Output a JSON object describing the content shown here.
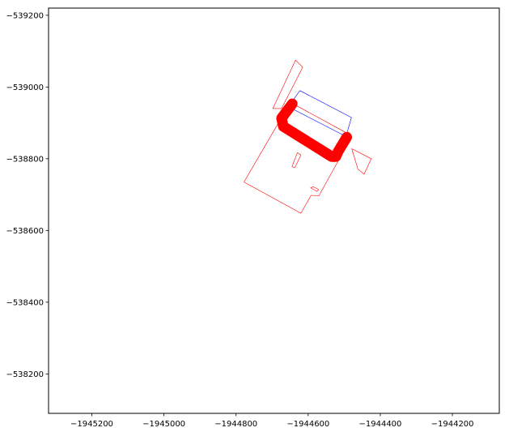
{
  "chart_data": {
    "type": "map-geometry",
    "title": "",
    "xlabel": "",
    "ylabel": "",
    "xlim": [
      -1945320,
      -1944070
    ],
    "ylim": [
      -539220,
      -538090
    ],
    "xticks": [
      -1945200,
      -1945000,
      -1944800,
      -1944600,
      -1944400,
      -1944200
    ],
    "yticks": [
      -538200,
      -538400,
      -538600,
      -538800,
      -539000,
      -539200
    ],
    "xtick_labels": [
      "−1945200",
      "−1945000",
      "−1944800",
      "−1944600",
      "−1944400",
      "−1944200"
    ],
    "ytick_labels": [
      "−538200",
      "−538400",
      "−538600",
      "−538800",
      "−539000",
      "−539200"
    ],
    "grid": false,
    "series": [
      {
        "color": "#ff0000",
        "linewidth": 0.6,
        "shapes": [
          [
            [
              -1944778,
              -538735
            ],
            [
              -1944620,
              -538648
            ],
            [
              -1944592,
              -538698
            ],
            [
              -1944570,
              -538697
            ],
            [
              -1944484,
              -538853
            ],
            [
              -1944486,
              -538868
            ],
            [
              -1944649,
              -538957
            ],
            [
              -1944665,
              -538930
            ],
            [
              -1944778,
              -538735
            ]
          ],
          [
            [
              -1944593,
              -538719
            ],
            [
              -1944576,
              -538709
            ],
            [
              -1944571,
              -538714
            ],
            [
              -1944586,
              -538722
            ],
            [
              -1944593,
              -538719
            ]
          ],
          [
            [
              -1944637,
              -538775
            ],
            [
              -1944620,
              -538810
            ],
            [
              -1944630,
              -538817
            ],
            [
              -1944645,
              -538778
            ],
            [
              -1944637,
              -538775
            ]
          ],
          [
            [
              -1944462,
              -538771
            ],
            [
              -1944445,
              -538757
            ],
            [
              -1944425,
              -538800
            ],
            [
              -1944479,
              -538828
            ],
            [
              -1944462,
              -538771
            ]
          ],
          [
            [
              -1944698,
              -538940
            ],
            [
              -1944674,
              -538940
            ],
            [
              -1944615,
              -539055
            ],
            [
              -1944635,
              -539075
            ],
            [
              -1944698,
              -538940
            ]
          ]
        ]
      },
      {
        "color": "#0000ff",
        "linewidth": 0.6,
        "shapes": [
          [
            [
              -1944655,
              -538945
            ],
            [
              -1944495,
              -538862
            ],
            [
              -1944480,
              -538915
            ],
            [
              -1944623,
              -538990
            ],
            [
              -1944655,
              -538945
            ]
          ]
        ]
      },
      {
        "color": "#ff0000",
        "linewidth": 13,
        "shapes": [
          [
            [
              -1944644,
              -538953
            ],
            [
              -1944674,
              -538913
            ],
            [
              -1944669,
              -538890
            ],
            [
              -1944535,
              -538806
            ],
            [
              -1944523,
              -538806
            ],
            [
              -1944517,
              -538820
            ],
            [
              -1944493,
              -538860
            ]
          ]
        ]
      }
    ]
  }
}
